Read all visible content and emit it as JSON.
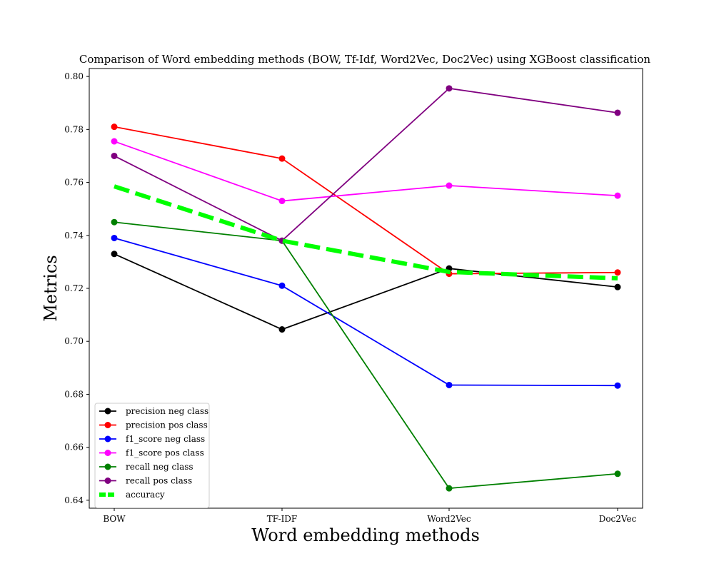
{
  "chart_data": {
    "type": "line",
    "title": "Comparison of Word embedding methods (BOW, Tf-Idf, Word2Vec, Doc2Vec) using XGBoost classification",
    "xlabel": "Word embedding methods",
    "ylabel": "Metrics",
    "categories": [
      "BOW",
      "TF-IDF",
      "Word2Vec",
      "Doc2Vec"
    ],
    "ylim": [
      0.637,
      0.803
    ],
    "yticks": [
      "0.64",
      "0.66",
      "0.68",
      "0.70",
      "0.72",
      "0.74",
      "0.76",
      "0.78",
      "0.80"
    ],
    "grid": false,
    "legend_position": "bottom-left",
    "series": [
      {
        "name": "precision neg class",
        "color": "#000000",
        "style": "solid-marker",
        "values": [
          0.733,
          0.7045,
          0.7275,
          0.7205
        ]
      },
      {
        "name": "precision pos class",
        "color": "#ff0000",
        "style": "solid-marker",
        "values": [
          0.781,
          0.769,
          0.7255,
          0.726
        ]
      },
      {
        "name": "f1_score neg class",
        "color": "#0000ff",
        "style": "solid-marker",
        "values": [
          0.739,
          0.721,
          0.6835,
          0.6833
        ]
      },
      {
        "name": "f1_score pos class",
        "color": "#ff00ff",
        "style": "solid-marker",
        "values": [
          0.7755,
          0.753,
          0.7588,
          0.755
        ]
      },
      {
        "name": "recall neg class",
        "color": "#008000",
        "style": "solid-marker",
        "values": [
          0.745,
          0.738,
          0.6445,
          0.65
        ]
      },
      {
        "name": "recall pos class",
        "color": "#800080",
        "style": "solid-marker",
        "values": [
          0.77,
          0.738,
          0.7955,
          0.7863
        ]
      },
      {
        "name": "accuracy",
        "color": "#00ff00",
        "style": "dashed-thick",
        "values": [
          0.7585,
          0.738,
          0.7262,
          0.7238
        ]
      }
    ]
  }
}
